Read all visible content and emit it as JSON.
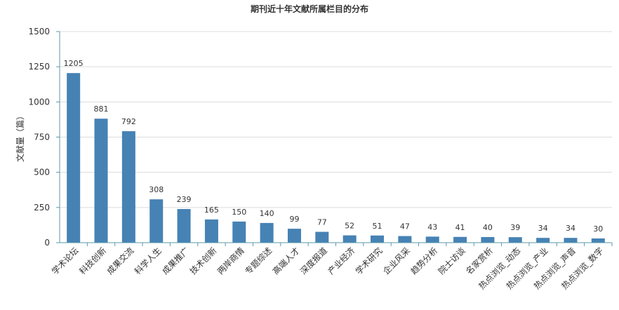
{
  "chart_data": {
    "type": "bar",
    "title": "期刊近十年文献所属栏目的分布",
    "ylabel": "文献量（篇）",
    "xlabel": "",
    "ylim": [
      0,
      1500
    ],
    "yticks": [
      0,
      250,
      500,
      750,
      1000,
      1250,
      1500
    ],
    "grid": true,
    "bar_color": "#4682b4",
    "categories": [
      "学术论坛",
      "科技创新",
      "成果交流",
      "科学人生",
      "成果推广",
      "技术创新",
      "两岸商情",
      "专题综述",
      "高端人才",
      "深度报道",
      "产业经济",
      "学术研究",
      "企业风采",
      "趋势分析",
      "院士访谈",
      "名家赏析",
      "热点浏览_动态",
      "热点浏览_产业",
      "热点浏览_声音",
      "热点浏览_数字"
    ],
    "values": [
      1205,
      881,
      792,
      308,
      239,
      165,
      150,
      140,
      99,
      77,
      52,
      51,
      47,
      43,
      41,
      40,
      39,
      34,
      34,
      30
    ]
  }
}
